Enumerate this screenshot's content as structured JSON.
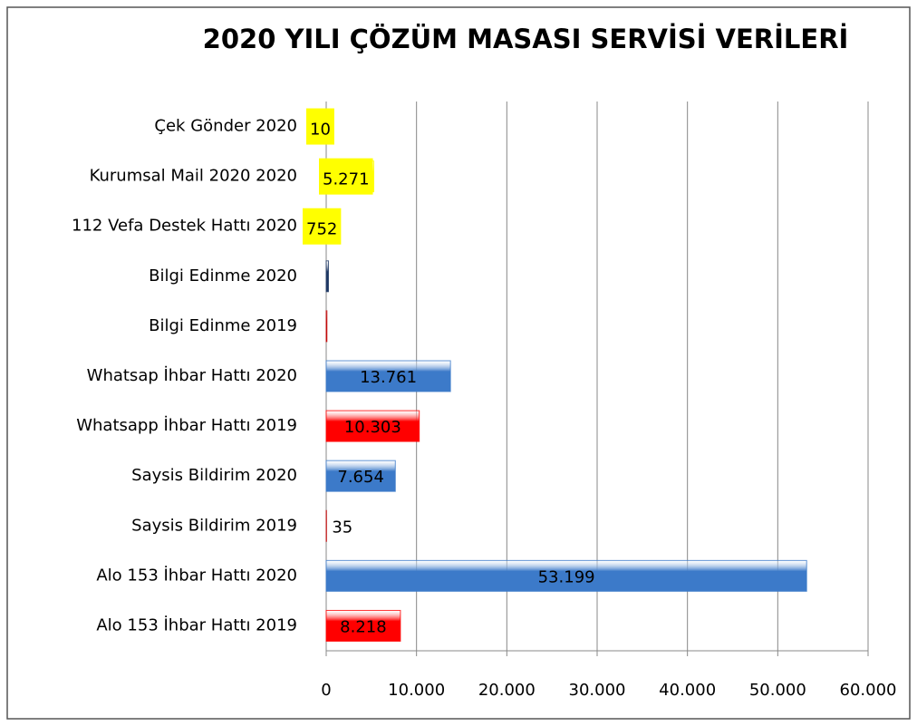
{
  "chart_data": {
    "type": "bar",
    "orientation": "horizontal",
    "title": "2020 YILI ÇÖZÜM MASASI SERVİSİ VERİLERİ",
    "categories": [
      "Çek Gönder 2020",
      "Kurumsal Mail 2020 2020",
      "112 Vefa Destek Hattı 2020",
      "Bilgi Edinme 2020",
      "Bilgi Edinme 2019",
      "Whatsap İhbar Hattı 2020",
      "Whatsapp İhbar Hattı 2019",
      "Saysis Bildirim 2020",
      "Saysis Bildirim 2019",
      "Alo 153 İhbar Hattı  2020",
      "Alo 153 İhbar Hattı 2019"
    ],
    "values": [
      10,
      5271,
      752,
      250,
      80,
      13761,
      10303,
      7654,
      35,
      53199,
      8218
    ],
    "value_labels": [
      "10",
      "5.271",
      "752",
      null,
      null,
      "13.761",
      "10.303",
      "7.654",
      "35",
      "53.199",
      "8.218"
    ],
    "colors": [
      "#ffff00",
      "#ffff00",
      "#ffff00",
      "#1f3864",
      "#c00000",
      "#3c7ac9",
      "#ff0000",
      "#3c7ac9",
      "#c00000",
      "#3c7ac9",
      "#ff0000"
    ],
    "label_backgrounds": [
      "#ffff00",
      "#ffff00",
      "#ffff00",
      null,
      null,
      null,
      null,
      null,
      null,
      null,
      null
    ],
    "xlim": [
      0,
      60000
    ],
    "xticks": [
      0,
      {
        "value": 10000,
        "label": "10.000"
      },
      {
        "value": 20000,
        "label": "20.000"
      },
      {
        "value": 30000,
        "label": "30.000"
      },
      {
        "value": 40000,
        "label": "40.000"
      },
      {
        "value": 50000,
        "label": "50.000"
      },
      {
        "value": 60000,
        "label": "60.000"
      }
    ],
    "grid": true
  }
}
